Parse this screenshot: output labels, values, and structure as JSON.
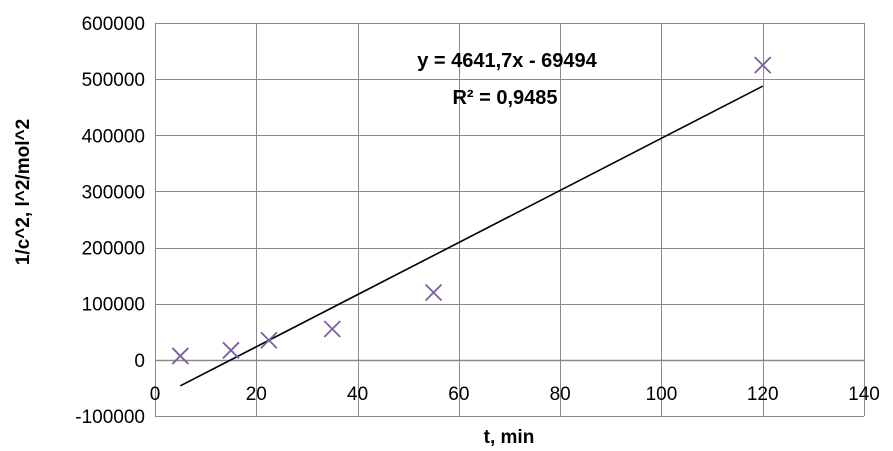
{
  "chart_data": {
    "type": "scatter",
    "title": "",
    "xlabel": "t, min",
    "ylabel": "1/c^2, l^2/mol^2",
    "xlim": [
      0,
      140
    ],
    "ylim": [
      -100000,
      600000
    ],
    "x_ticks": [
      0,
      20,
      40,
      60,
      80,
      100,
      120,
      140
    ],
    "y_ticks": [
      -100000,
      0,
      100000,
      200000,
      300000,
      400000,
      500000,
      600000
    ],
    "x_tick_labels": [
      "0",
      "20",
      "40",
      "60",
      "80",
      "100",
      "120",
      "140"
    ],
    "y_tick_labels": [
      "-100000",
      "0",
      "100000",
      "200000",
      "300000",
      "400000",
      "500000",
      "600000"
    ],
    "grid": true,
    "legend": "none",
    "series": [
      {
        "marker": "x",
        "color": "#7b5fa3",
        "x": [
          5,
          15,
          22.5,
          35,
          55,
          120
        ],
        "y": [
          7000,
          17000,
          35000,
          55000,
          120000,
          525000
        ]
      }
    ],
    "trendline": {
      "type": "linear",
      "slope": 4641.7,
      "intercept": -69494,
      "x_range": [
        5,
        120
      ],
      "color": "#000000"
    },
    "annotations": {
      "equation": "y = 4641,7x - 69494",
      "r_squared": "R² = 0,9485"
    },
    "colors": {
      "grid": "#8a8a8a",
      "axis": "#8a8a8a",
      "marker": "#7b5fa3",
      "trendline": "#000000"
    }
  }
}
